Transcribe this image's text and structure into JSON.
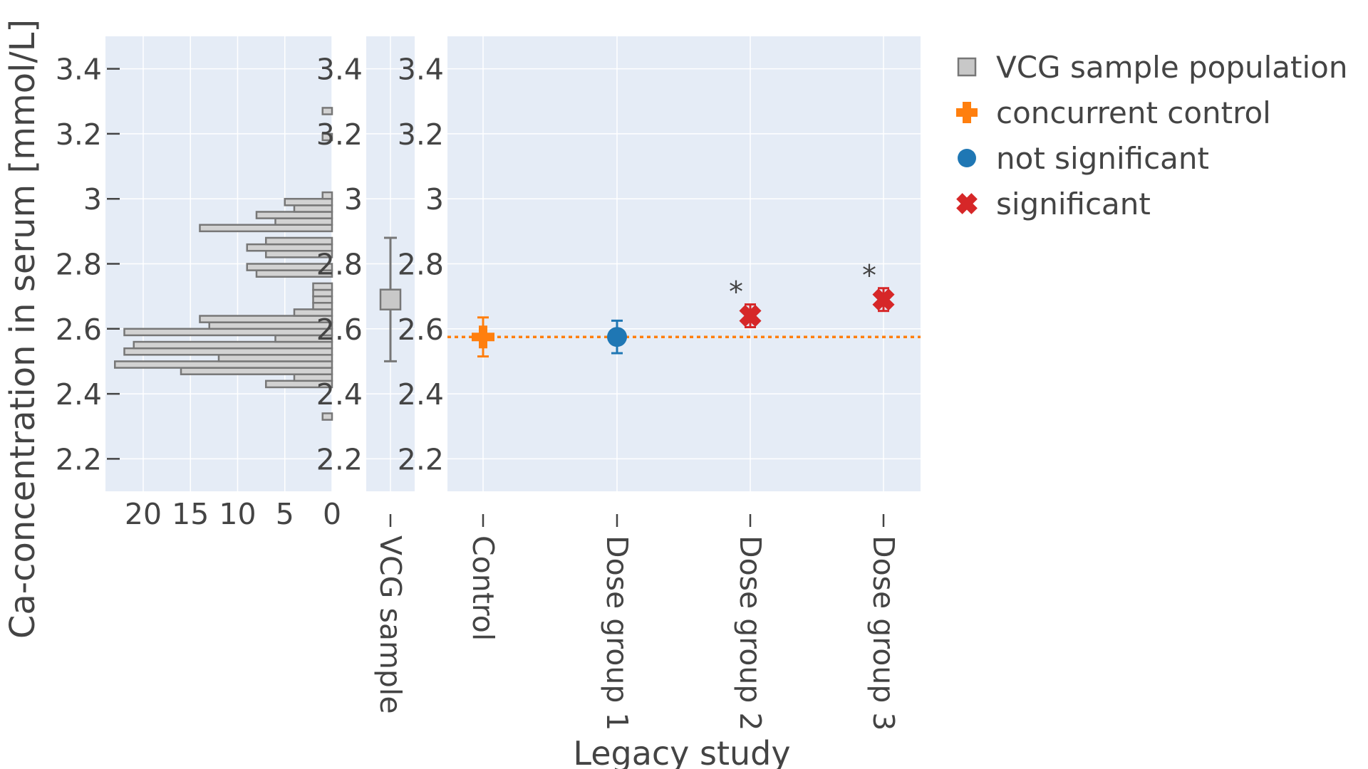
{
  "chart_data": {
    "type": "scatter",
    "y_axis": {
      "label": "Ca-concentration in serum [mmol/L]",
      "range": [
        2.1,
        3.5
      ],
      "ticks": [
        2.2,
        2.4,
        2.6,
        2.8,
        3,
        3.2,
        3.4
      ],
      "tick_labels": [
        "2.2",
        "2.4",
        "2.6",
        "2.8",
        "3",
        "3.2",
        "3.4"
      ],
      "grid": true
    },
    "histogram": {
      "orientation": "horizontal",
      "x_axis_reversed": true,
      "x_range": [
        0,
        24
      ],
      "x_ticks": [
        20,
        15,
        10,
        5,
        0
      ],
      "x_tick_labels": [
        "20",
        "15",
        "10",
        "5",
        "0"
      ],
      "bin_width": 0.02,
      "bins": [
        {
          "y0": 2.32,
          "count": 1
        },
        {
          "y0": 2.42,
          "count": 7
        },
        {
          "y0": 2.44,
          "count": 4
        },
        {
          "y0": 2.46,
          "count": 16
        },
        {
          "y0": 2.48,
          "count": 23
        },
        {
          "y0": 2.5,
          "count": 12
        },
        {
          "y0": 2.52,
          "count": 22
        },
        {
          "y0": 2.54,
          "count": 21
        },
        {
          "y0": 2.56,
          "count": 6
        },
        {
          "y0": 2.58,
          "count": 22
        },
        {
          "y0": 2.6,
          "count": 13
        },
        {
          "y0": 2.62,
          "count": 14
        },
        {
          "y0": 2.64,
          "count": 4
        },
        {
          "y0": 2.66,
          "count": 2
        },
        {
          "y0": 2.68,
          "count": 2
        },
        {
          "y0": 2.7,
          "count": 2
        },
        {
          "y0": 2.72,
          "count": 2
        },
        {
          "y0": 2.76,
          "count": 8
        },
        {
          "y0": 2.78,
          "count": 9
        },
        {
          "y0": 2.82,
          "count": 7
        },
        {
          "y0": 2.84,
          "count": 9
        },
        {
          "y0": 2.86,
          "count": 7
        },
        {
          "y0": 2.9,
          "count": 14
        },
        {
          "y0": 2.92,
          "count": 6
        },
        {
          "y0": 2.94,
          "count": 8
        },
        {
          "y0": 2.96,
          "count": 4
        },
        {
          "y0": 2.98,
          "count": 5
        },
        {
          "y0": 3.0,
          "count": 1
        },
        {
          "y0": 3.18,
          "count": 1
        },
        {
          "y0": 3.26,
          "count": 1
        }
      ]
    },
    "vcg_summary": {
      "category": "VCG sample",
      "mean": 2.69,
      "lower": 2.5,
      "upper": 2.88
    },
    "legacy_study": {
      "xlabel": "Legacy study",
      "categories": [
        "Control",
        "Dose group 1",
        "Dose group 2",
        "Dose group 3"
      ],
      "control_reference_line": 2.575,
      "points": [
        {
          "category": "Control",
          "group": "concurrent control",
          "mean": 2.575,
          "lower": 2.515,
          "upper": 2.635,
          "annotation": ""
        },
        {
          "category": "Dose group 1",
          "group": "not significant",
          "mean": 2.575,
          "lower": 2.525,
          "upper": 2.625,
          "annotation": ""
        },
        {
          "category": "Dose group 2",
          "group": "significant",
          "mean": 2.64,
          "lower": 2.605,
          "upper": 2.675,
          "annotation": "*"
        },
        {
          "category": "Dose group 3",
          "group": "significant",
          "mean": 2.69,
          "lower": 2.655,
          "upper": 2.725,
          "annotation": "*"
        }
      ]
    },
    "legend": {
      "placement": "top-right",
      "entries": [
        {
          "label": "VCG sample population",
          "symbol": "square",
          "color": "#c8c8c8",
          "stroke": "#777777"
        },
        {
          "label": "concurrent control",
          "symbol": "cross",
          "color": "#ff7f0e"
        },
        {
          "label": "not significant",
          "symbol": "circle",
          "color": "#1f77b4"
        },
        {
          "label": "significant",
          "symbol": "x",
          "color": "#d62728"
        }
      ]
    },
    "colors": {
      "plot_background": "#e5ecf6",
      "grid": "#ffffff",
      "text": "#444444"
    }
  }
}
